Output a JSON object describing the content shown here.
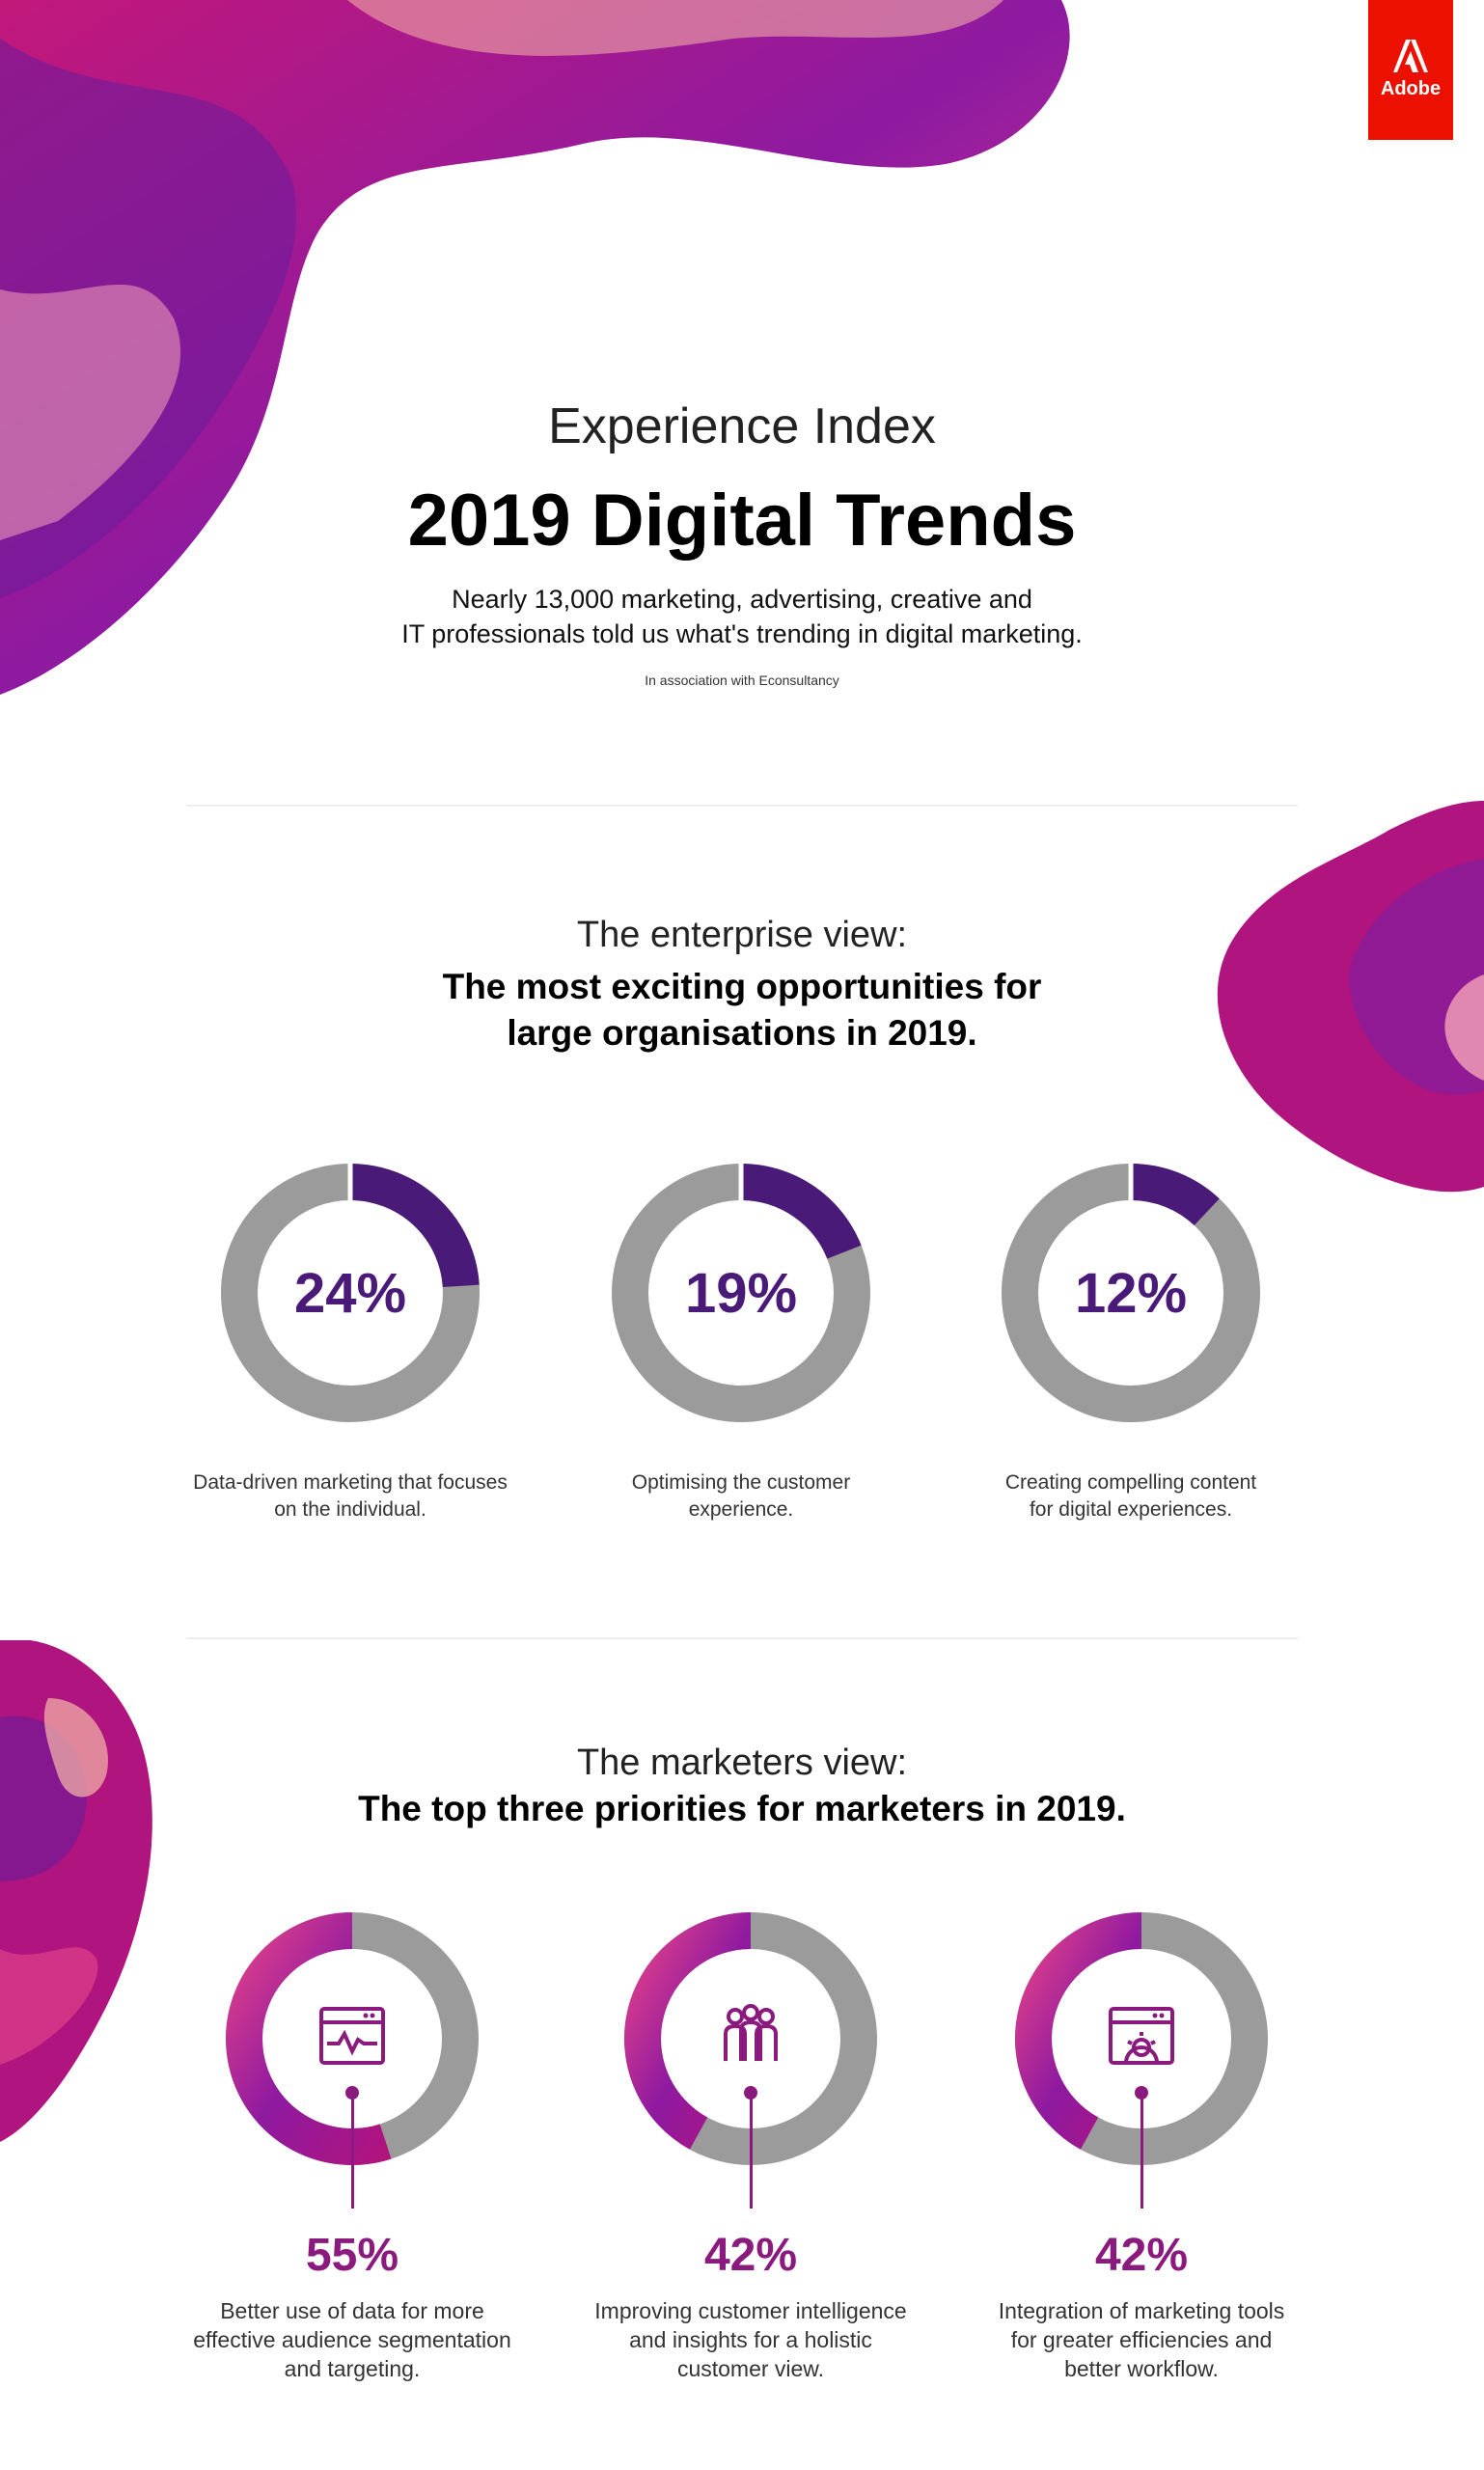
{
  "brand": {
    "logo_text": "Adobe",
    "accent": "#eb1000"
  },
  "header": {
    "eyebrow": "Experience Index",
    "title": "2019 Digital Trends",
    "intro_line1": "Nearly 13,000 marketing, advertising, creative and",
    "intro_line2": "IT professionals told us what's trending in digital marketing.",
    "association": "In association with Econsultancy"
  },
  "enterprise": {
    "eyebrow": "The enterprise view:",
    "heading_line1": "The most exciting opportunities for",
    "heading_line2": "large organisations in 2019.",
    "items": [
      {
        "pct_label": "24%",
        "caption_line1": "Data-driven marketing that focuses",
        "caption_line2": "on the individual."
      },
      {
        "pct_label": "19%",
        "caption_line1": "Optimising the customer",
        "caption_line2": "experience."
      },
      {
        "pct_label": "12%",
        "caption_line1": "Creating compelling content",
        "caption_line2": "for digital experiences."
      }
    ]
  },
  "marketers": {
    "eyebrow": "The marketers view:",
    "heading": "The top three priorities for marketers in 2019.",
    "items": [
      {
        "pct_label": "55%",
        "icon": "analytics-window-icon",
        "caption_line1": "Better use of data for more",
        "caption_line2": "effective audience segmentation",
        "caption_line3": "and targeting."
      },
      {
        "pct_label": "42%",
        "icon": "people-group-icon",
        "caption_line1": "Improving customer intelligence",
        "caption_line2": "and insights for a holistic",
        "caption_line3": "customer view."
      },
      {
        "pct_label": "42%",
        "icon": "settings-window-icon",
        "caption_line1": "Integration of marketing tools",
        "caption_line2": "for greater efficiencies and",
        "caption_line3": "better workflow."
      }
    ]
  },
  "colors": {
    "enterprise_fill": "#4a1a78",
    "track": "#9b9b9b",
    "marketer_fill": "#8b1a7f"
  },
  "chart_data": [
    {
      "type": "pie",
      "categories": [
        "Data-driven marketing that focuses on the individual.",
        "Optimising the customer experience.",
        "Creating compelling content for digital experiences."
      ],
      "values": [
        24,
        19,
        12
      ]
    },
    {
      "type": "pie",
      "categories": [
        "Better use of data for more effective audience segmentation and targeting.",
        "Improving customer intelligence and insights for a holistic customer view.",
        "Integration of marketing tools for greater efficiencies and better workflow."
      ],
      "values": [
        55,
        42,
        42
      ]
    }
  ]
}
